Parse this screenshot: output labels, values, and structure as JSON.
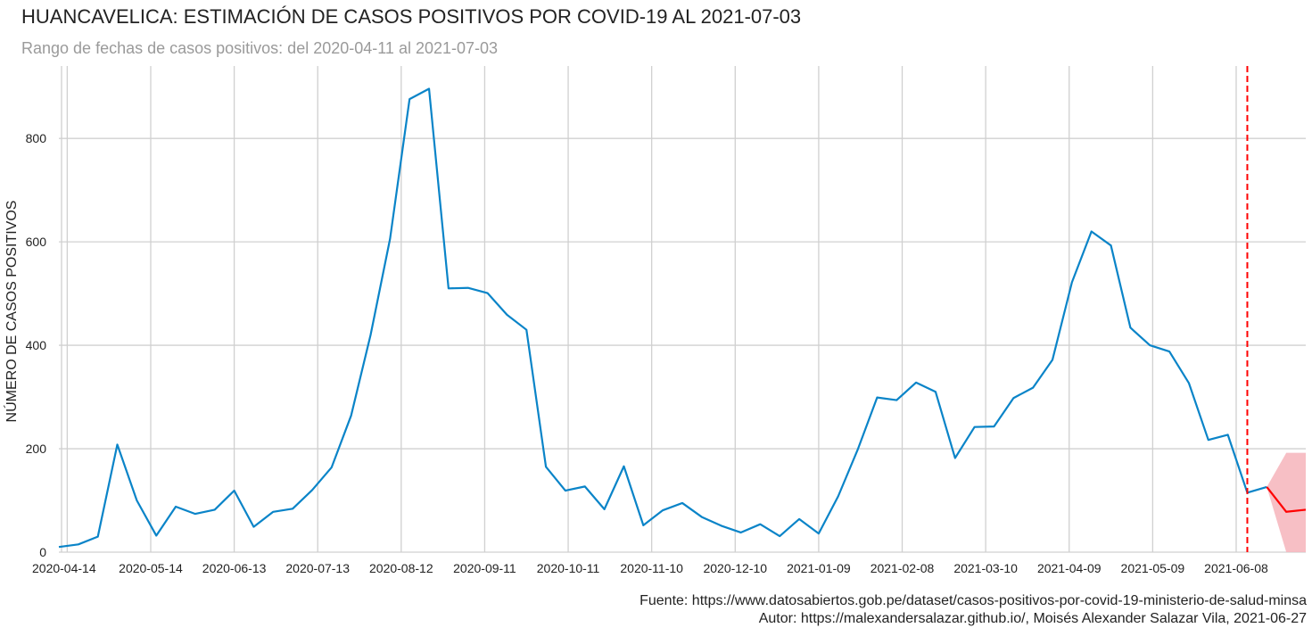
{
  "title": "HUANCAVELICA: ESTIMACIÓN DE CASOS POSITIVOS POR COVID-19 AL 2021-07-03",
  "subtitle": "Rango de fechas de casos positivos: del 2020-04-11 al 2021-07-03",
  "footer": {
    "source": "Fuente: https://www.datosabiertos.gob.pe/dataset/casos-positivos-por-covid-19-ministerio-de-salud-minsa",
    "author": "Autor: https://malexandersalazar.github.io/, Moisés Alexander Salazar Vila, 2021-06-27"
  },
  "colors": {
    "observed": "#0a84c8",
    "forecast": "#ff0000",
    "band": "#f6b8bf",
    "grid": "#d0d0d0",
    "vline": "#ff0000"
  },
  "chart_data": {
    "type": "line",
    "title": "HUANCAVELICA: ESTIMACIÓN DE CASOS POSITIVOS POR COVID-19 AL 2021-07-03",
    "ylabel": "NÚMERO DE CASOS POSITIVOS",
    "xlabel": "",
    "x_range": [
      "2020-04-11",
      "2021-07-03"
    ],
    "ylim": [
      0,
      940
    ],
    "yticks": [
      0,
      200,
      400,
      600,
      800
    ],
    "xticks": [
      "2020-04-14",
      "2020-05-14",
      "2020-06-13",
      "2020-07-13",
      "2020-08-12",
      "2020-09-11",
      "2020-10-11",
      "2020-11-10",
      "2020-12-10",
      "2021-01-09",
      "2021-02-08",
      "2021-03-10",
      "2021-04-09",
      "2021-05-09",
      "2021-06-08"
    ],
    "grid": true,
    "cutoff_date": "2021-06-12",
    "series": [
      {
        "key": "observed",
        "x": [
          "2020-04-11",
          "2020-04-18",
          "2020-04-25",
          "2020-05-02",
          "2020-05-09",
          "2020-05-16",
          "2020-05-23",
          "2020-05-30",
          "2020-06-06",
          "2020-06-13",
          "2020-06-20",
          "2020-06-27",
          "2020-07-04",
          "2020-07-11",
          "2020-07-18",
          "2020-07-25",
          "2020-08-01",
          "2020-08-08",
          "2020-08-15",
          "2020-08-22",
          "2020-08-29",
          "2020-09-05",
          "2020-09-12",
          "2020-09-19",
          "2020-09-26",
          "2020-10-03",
          "2020-10-10",
          "2020-10-17",
          "2020-10-24",
          "2020-10-31",
          "2020-11-07",
          "2020-11-14",
          "2020-11-21",
          "2020-11-28",
          "2020-12-05",
          "2020-12-12",
          "2020-12-19",
          "2020-12-26",
          "2021-01-02",
          "2021-01-09",
          "2021-01-16",
          "2021-01-23",
          "2021-01-30",
          "2021-02-06",
          "2021-02-13",
          "2021-02-20",
          "2021-02-27",
          "2021-03-06",
          "2021-03-13",
          "2021-03-20",
          "2021-03-27",
          "2021-04-03",
          "2021-04-10",
          "2021-04-17",
          "2021-04-24",
          "2021-05-01",
          "2021-05-08",
          "2021-05-15",
          "2021-05-22",
          "2021-05-29",
          "2021-06-05",
          "2021-06-12",
          "2021-06-19"
        ],
        "values": [
          10,
          15,
          30,
          208,
          100,
          32,
          88,
          74,
          82,
          119,
          49,
          78,
          84,
          120,
          164,
          264,
          420,
          606,
          876,
          896,
          510,
          511,
          501,
          459,
          430,
          165,
          119,
          127,
          83,
          166,
          52,
          81,
          95,
          68,
          51,
          38,
          54,
          31,
          64,
          36,
          108,
          198,
          299,
          294,
          328,
          310,
          182,
          242,
          243,
          298,
          318,
          372,
          522,
          620,
          593,
          434,
          400,
          388,
          327,
          217,
          227,
          115,
          126
        ]
      },
      {
        "key": "forecast",
        "x": [
          "2021-06-19",
          "2021-06-26",
          "2021-07-03"
        ],
        "values": [
          126,
          78,
          82
        ],
        "lower": [
          126,
          0,
          0
        ],
        "upper": [
          126,
          192,
          192
        ]
      }
    ]
  }
}
